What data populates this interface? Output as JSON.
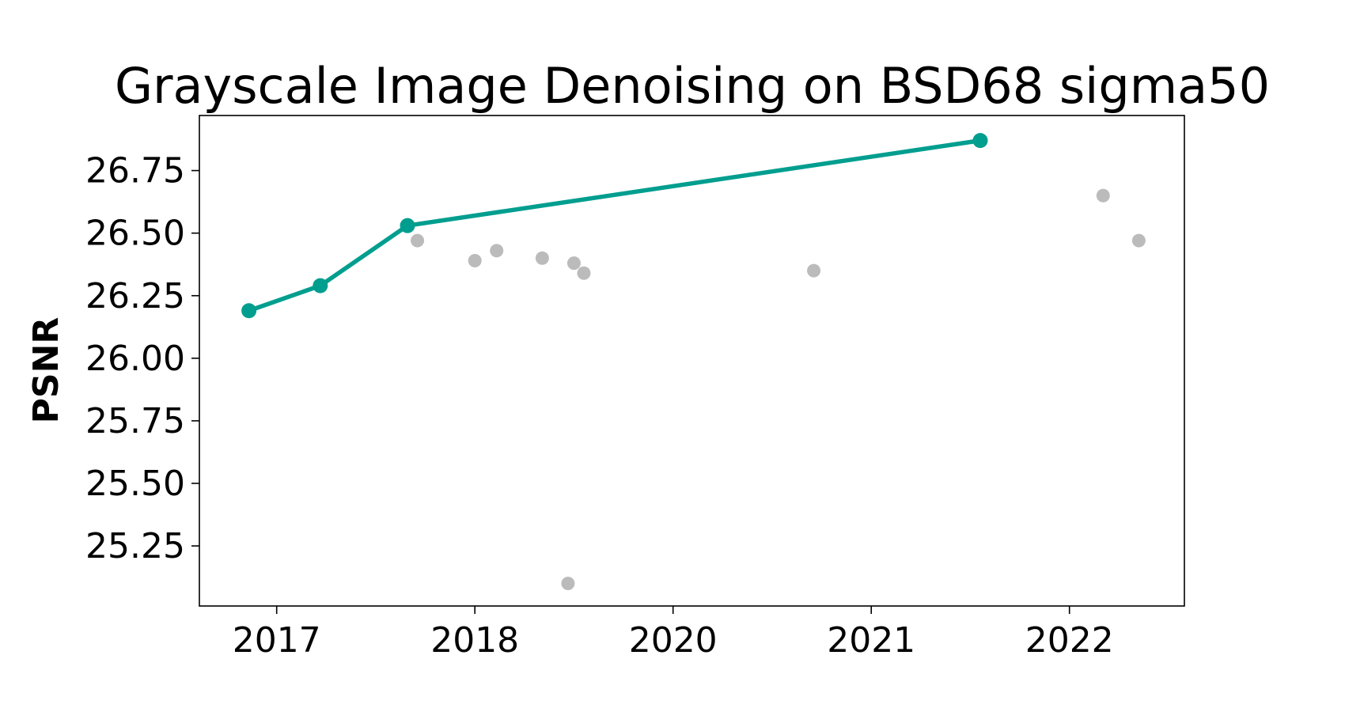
{
  "chart_data": {
    "type": "scatter",
    "title": "Grayscale Image Denoising on BSD68 sigma50",
    "xlabel": "",
    "ylabel": "PSNR",
    "x_ticks": [
      {
        "x": 0.0,
        "label": "2017"
      },
      {
        "x": 1.0,
        "label": "2018"
      },
      {
        "x": 2.0,
        "label": "2020"
      },
      {
        "x": 3.0,
        "label": "2021"
      },
      {
        "x": 4.0,
        "label": "2022"
      }
    ],
    "y_ticks": [
      25.25,
      25.5,
      25.75,
      26.0,
      26.25,
      26.5,
      26.75
    ],
    "y_tick_labels": [
      "25.25",
      "25.50",
      "25.75",
      "26.00",
      "26.25",
      "26.50",
      "26.75"
    ],
    "xlim": [
      -0.39,
      4.58
    ],
    "ylim": [
      25.01,
      26.97
    ],
    "grid": false,
    "series": [
      {
        "role": "best",
        "color": "#009e8f",
        "style": "line-with-markers",
        "points": [
          {
            "x": -0.14,
            "y": 26.19
          },
          {
            "x": 0.22,
            "y": 26.29
          },
          {
            "x": 0.66,
            "y": 26.53
          },
          {
            "x": 3.55,
            "y": 26.87
          }
        ]
      },
      {
        "role": "other",
        "color": "#bbbbbb",
        "style": "markers",
        "points": [
          {
            "x": 0.71,
            "y": 26.47
          },
          {
            "x": 1.0,
            "y": 26.39
          },
          {
            "x": 1.11,
            "y": 26.43
          },
          {
            "x": 1.34,
            "y": 26.4
          },
          {
            "x": 1.47,
            "y": 25.1
          },
          {
            "x": 1.5,
            "y": 26.38
          },
          {
            "x": 1.55,
            "y": 26.34
          },
          {
            "x": 2.71,
            "y": 26.35
          },
          {
            "x": 4.17,
            "y": 26.65
          },
          {
            "x": 4.35,
            "y": 26.47
          }
        ]
      }
    ]
  }
}
